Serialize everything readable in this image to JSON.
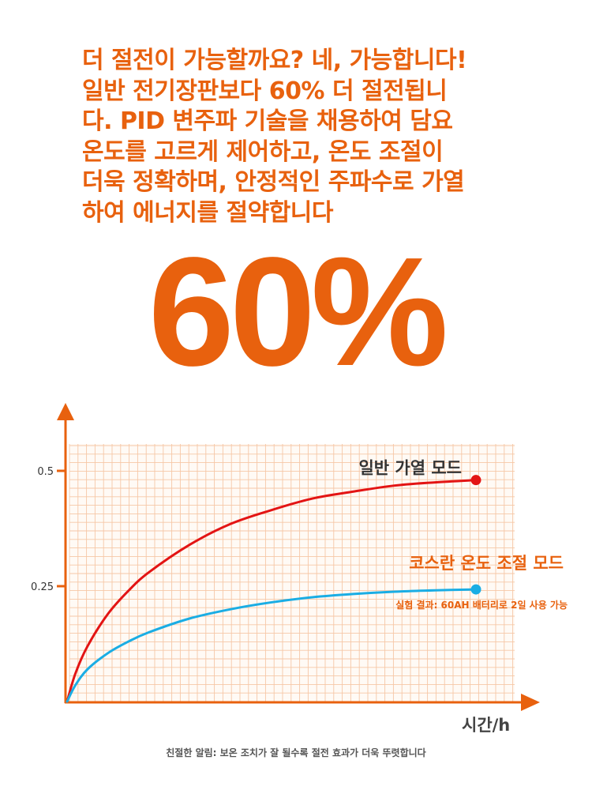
{
  "headline": "더 절전이 가능할까요? 네, 가능합니다!\n일반 전기장판보다 60% 더 절전됩니\n다. PID 변주파 기술을 채용하여 담요\n온도를 고르게 제어하고, 온도 조절이\n더욱 정확하며, 안정적인 주파수로 가열\n하여 에너지를 절약합니다",
  "big_number": "60%",
  "colors": {
    "accent": "#e8610e",
    "grid": "#f6c7a6",
    "normal_series": "#e31414",
    "cosran_series": "#1aade4"
  },
  "chart_data": {
    "type": "line",
    "xlabel": "시간/h",
    "ylabel": "",
    "y_ticks": [
      0.5,
      0.25
    ],
    "y_tick_labels": [
      "0.5",
      "0.25"
    ],
    "ylim": [
      0,
      0.55
    ],
    "xlim": [
      0,
      1
    ],
    "grid": true,
    "series": [
      {
        "name": "일반 가열 모드",
        "color": "#e31414",
        "x": [
          0,
          0.02,
          0.05,
          0.1,
          0.15,
          0.2,
          0.3,
          0.4,
          0.5,
          0.6,
          0.7,
          0.8,
          0.9,
          1.0
        ],
        "y": [
          0,
          0.06,
          0.12,
          0.19,
          0.24,
          0.28,
          0.34,
          0.385,
          0.415,
          0.44,
          0.455,
          0.468,
          0.475,
          0.48
        ]
      },
      {
        "name": "코스란 온도 조절 모드",
        "color": "#1aade4",
        "x": [
          0,
          0.02,
          0.05,
          0.1,
          0.15,
          0.2,
          0.3,
          0.4,
          0.5,
          0.6,
          0.7,
          0.8,
          0.9,
          1.0
        ],
        "y": [
          0,
          0.035,
          0.07,
          0.105,
          0.13,
          0.15,
          0.18,
          0.2,
          0.215,
          0.226,
          0.233,
          0.238,
          0.241,
          0.243
        ]
      }
    ],
    "annotation": "실험 결과: 60AH 배터리로 2일 사용 가능"
  },
  "footnote": "친절한 알림: 보온 조치가 잘 될수록 절전 효과가 더욱 뚜렷합니다"
}
